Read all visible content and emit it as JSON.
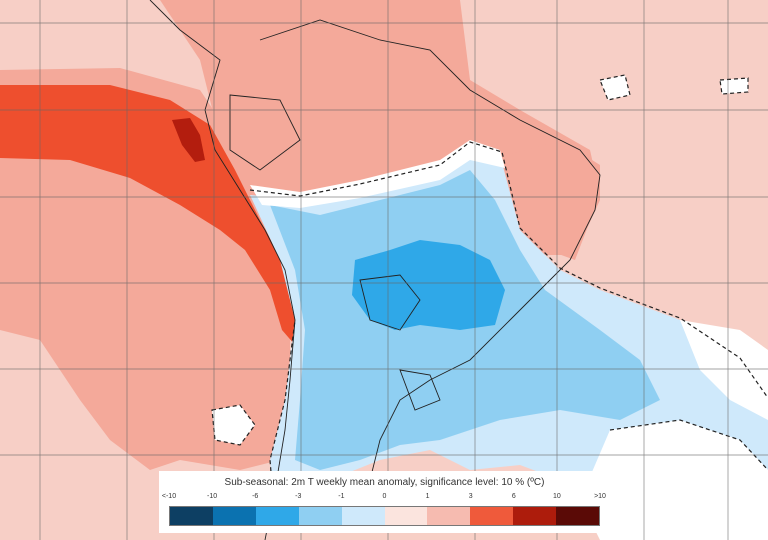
{
  "legend": {
    "title": "Sub-seasonal: 2m T weekly mean anomaly, significance level: 10 % (ºC)",
    "ticks": [
      "<-10",
      "-10",
      "-6",
      "-3",
      "-1",
      "0",
      "1",
      "3",
      "6",
      "10",
      ">10"
    ],
    "colors": [
      "#0d3f63",
      "#0b72b0",
      "#2fa8e8",
      "#8fcff2",
      "#cfe9fb",
      "#fbe4de",
      "#f6bbb0",
      "#ef5a3b",
      "#ad1c0c",
      "#5a0a06"
    ]
  },
  "palette": {
    "ocean": "#f7cfc6",
    "warm_1_3": "#f4a99a",
    "warm_3_6": "#ee4f2e",
    "warm_6_10": "#b31d0e",
    "cool_0_1": "#cfe9fb",
    "cool_1_3": "#8fcff2",
    "cool_3_6": "#2fa8e8",
    "neutral": "#ffffff",
    "coast": "#222222",
    "grid": "#666666"
  }
}
